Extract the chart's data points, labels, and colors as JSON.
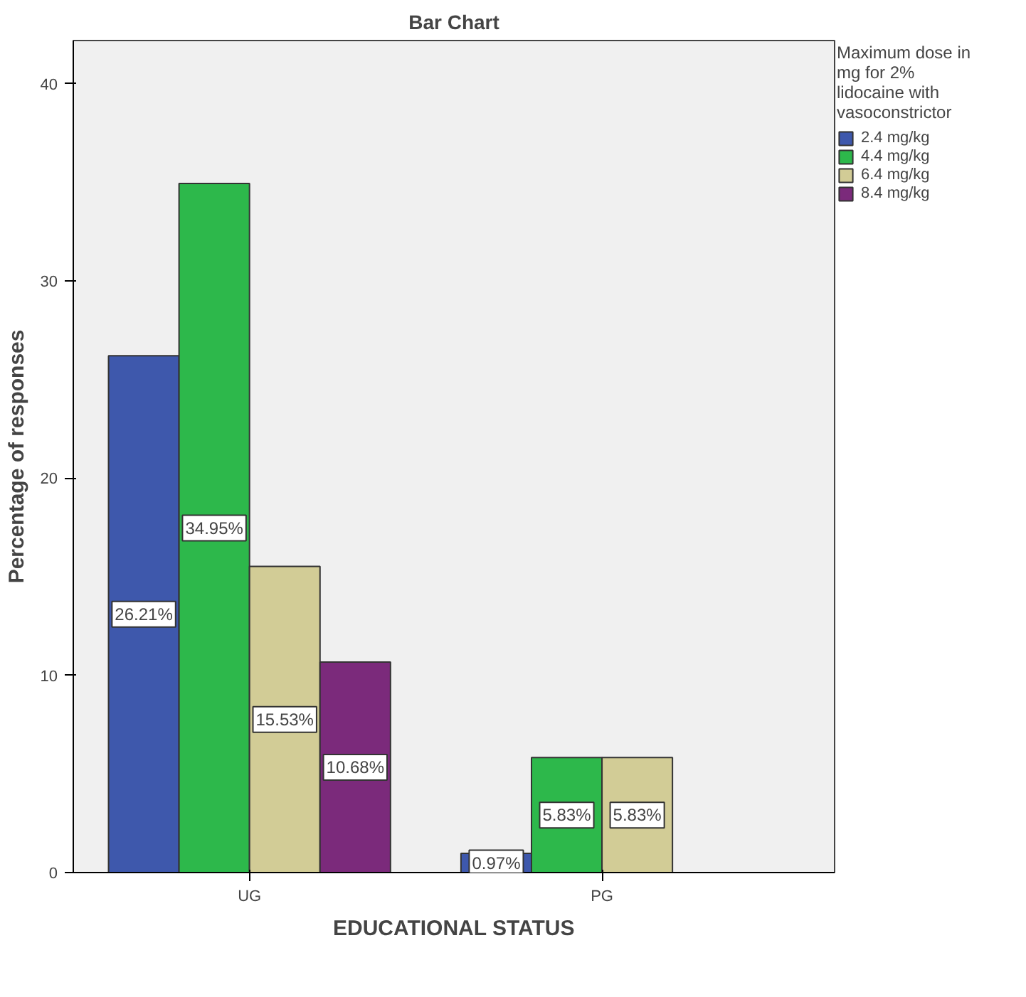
{
  "chart_data": {
    "type": "bar",
    "title": "Bar Chart",
    "xlabel": "EDUCATIONAL STATUS",
    "ylabel": "Percentage of responses",
    "legend_title": "Maximum dose in mg for 2% lidocaine with vasoconstrictor",
    "legend": "right",
    "categories": [
      "UG",
      "PG"
    ],
    "series": [
      {
        "name": "2.4 mg/kg",
        "color": "#3e58ac",
        "values": [
          26.21,
          0.97
        ],
        "value_labels": [
          "26.21%",
          "0.97%"
        ]
      },
      {
        "name": "4.4 mg/kg",
        "color": "#2db84b",
        "values": [
          34.95,
          5.83
        ],
        "value_labels": [
          "34.95%",
          "5.83%"
        ]
      },
      {
        "name": "6.4 mg/kg",
        "color": "#d2cc96",
        "values": [
          15.53,
          5.83
        ],
        "value_labels": [
          "15.53%",
          "5.83%"
        ]
      },
      {
        "name": "8.4 mg/kg",
        "color": "#7b2a7b",
        "values": [
          10.68,
          null
        ],
        "value_labels": [
          "10.68%",
          null
        ]
      }
    ],
    "ylim": [
      0,
      42.2
    ],
    "yticks": [
      0,
      10,
      20,
      30,
      40
    ],
    "grid": false
  }
}
